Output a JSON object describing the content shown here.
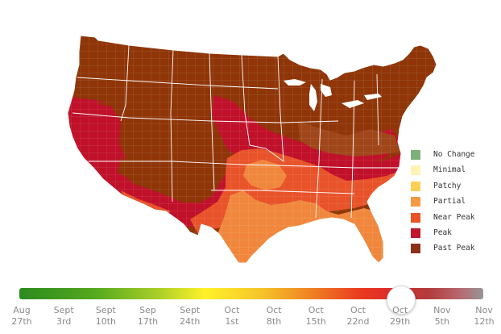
{
  "map": {
    "colors": {
      "past_peak": "#8f3508",
      "peak": "#c0102a",
      "near_peak": "#e8532a",
      "partial": "#f0873c",
      "border": "#ffffff"
    }
  },
  "legend": {
    "items": [
      {
        "label": "No Change",
        "color": "#7fb07a"
      },
      {
        "label": "Minimal",
        "color": "#fff4b3"
      },
      {
        "label": "Patchy",
        "color": "#fcd057"
      },
      {
        "label": "Partial",
        "color": "#f59a44"
      },
      {
        "label": "Near Peak",
        "color": "#ea5228"
      },
      {
        "label": "Peak",
        "color": "#c0152c"
      },
      {
        "label": "Past Peak",
        "color": "#8c3118"
      }
    ]
  },
  "timeline": {
    "selected_index": 9,
    "dates": [
      {
        "month": "Aug",
        "day": "27th"
      },
      {
        "month": "Sept",
        "day": "3rd"
      },
      {
        "month": "Sept",
        "day": "10th"
      },
      {
        "month": "Sep",
        "day": "17th"
      },
      {
        "month": "Sept",
        "day": "24th"
      },
      {
        "month": "Oct",
        "day": "1st"
      },
      {
        "month": "Oct",
        "day": "8th"
      },
      {
        "month": "Oct",
        "day": "15th"
      },
      {
        "month": "Oct",
        "day": "22nd"
      },
      {
        "month": "Oct",
        "day": "29th"
      },
      {
        "month": "Nov",
        "day": "5th"
      },
      {
        "month": "Nov",
        "day": "12th"
      }
    ]
  }
}
